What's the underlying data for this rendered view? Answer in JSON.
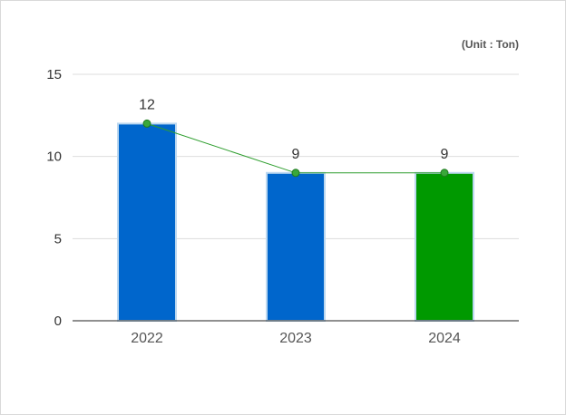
{
  "chart_data": {
    "type": "bar",
    "unit_label": "(Unit : Ton)",
    "categories": [
      "2022",
      "2023",
      "2024"
    ],
    "values": [
      12,
      9,
      9
    ],
    "data_labels": [
      "12",
      "9",
      "9"
    ],
    "bar_colors": [
      "#0066cc",
      "#0066cc",
      "#009900"
    ],
    "bar_border_color": "#bcd8f0",
    "line_overlay": {
      "values": [
        12,
        9,
        9
      ],
      "color": "#2e9e2e"
    },
    "yticks": [
      0,
      5,
      10,
      15
    ],
    "ytick_labels": [
      "0",
      "5",
      "10",
      "15"
    ],
    "ylim": [
      0,
      15
    ],
    "grid": true,
    "title": "",
    "xlabel": "",
    "ylabel": ""
  }
}
